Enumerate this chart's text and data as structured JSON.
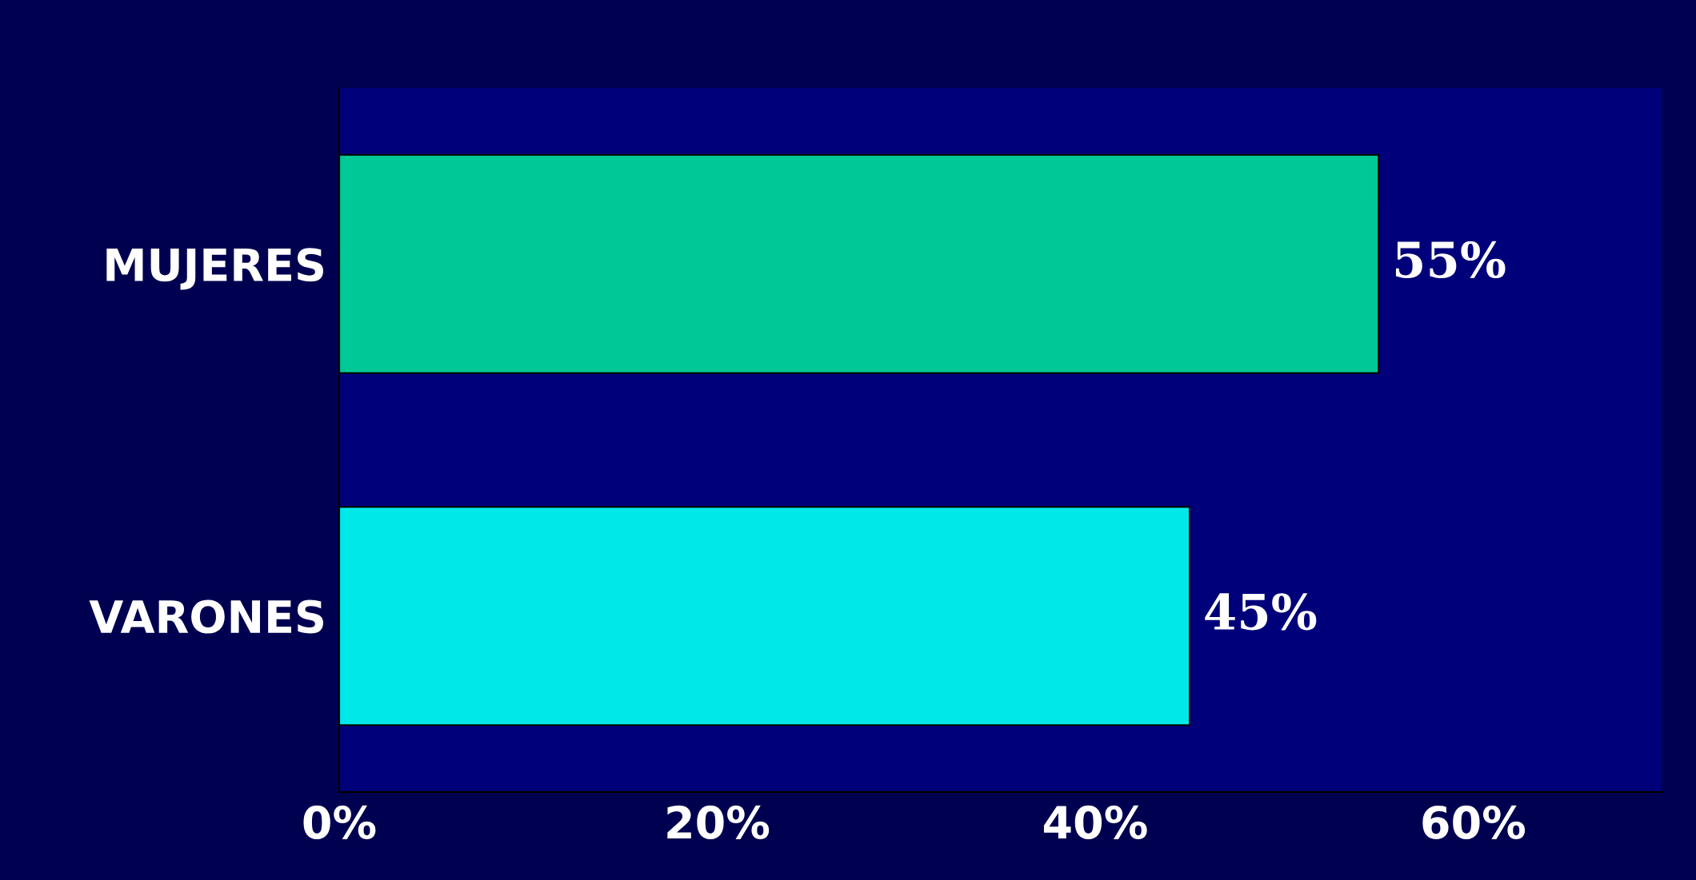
{
  "chart_data": {
    "type": "bar",
    "orientation": "horizontal",
    "categories": [
      "MUJERES",
      "VARONES"
    ],
    "values": [
      55,
      45
    ],
    "colors": [
      "#00c896",
      "#00e8e8"
    ],
    "value_labels": [
      "55%",
      "45%"
    ],
    "xlim": [
      0,
      70
    ],
    "xticks": [
      {
        "value": 0,
        "label": "0%"
      },
      {
        "value": 20,
        "label": "20%"
      },
      {
        "value": 40,
        "label": "40%"
      },
      {
        "value": 60,
        "label": "60%"
      }
    ],
    "grid": false,
    "legend": false
  }
}
